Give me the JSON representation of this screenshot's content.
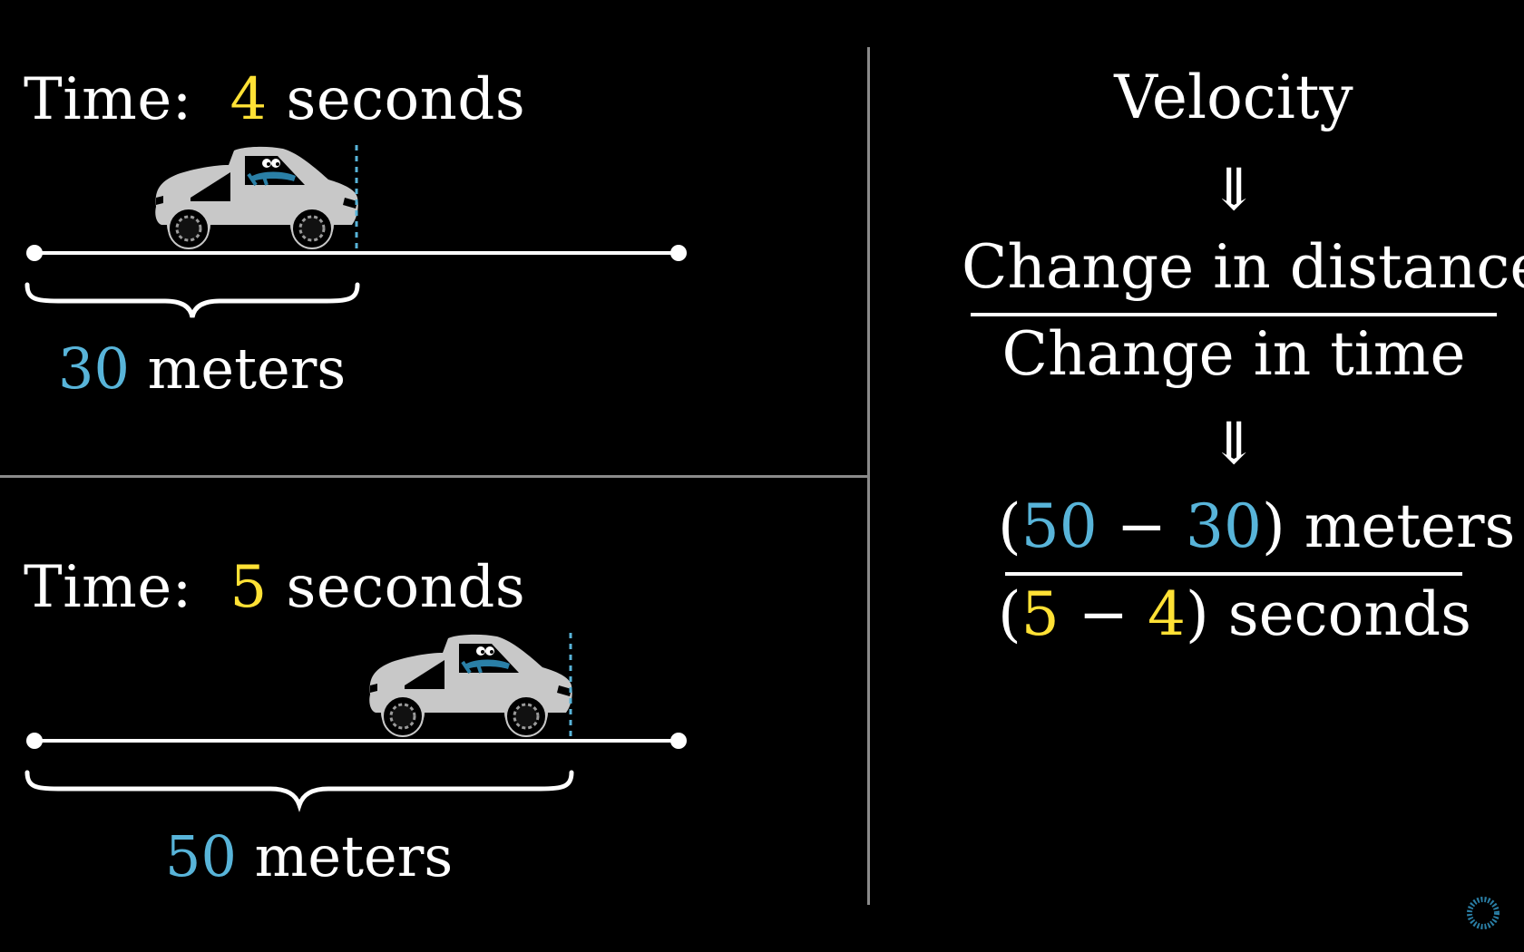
{
  "panel_top": {
    "time_prefix": "Time:",
    "time_value": "4",
    "time_unit": "seconds",
    "distance_value": "30",
    "distance_unit": "meters",
    "car_position_m": 30
  },
  "panel_bottom": {
    "time_prefix": "Time:",
    "time_value": "5",
    "time_unit": "seconds",
    "distance_value": "50",
    "distance_unit": "meters",
    "car_position_m": 50
  },
  "right": {
    "velocity_label": "Velocity",
    "implies_1": "⇓",
    "numerator_1": "Change in distance",
    "denominator_1": "Change in time",
    "implies_2": "⇓",
    "num_open": "(",
    "num_a": "50",
    "num_minus": " − ",
    "num_b": "30",
    "num_close": ")",
    "num_unit": "meters",
    "den_open": "(",
    "den_a": "5",
    "den_minus": " − ",
    "den_b": "4",
    "den_close": ")",
    "den_unit": "seconds"
  },
  "colors": {
    "background": "#000000",
    "time_highlight": "#ffe135",
    "distance_highlight": "#58b4d9",
    "divider": "#8a8a8a",
    "car_body": "#c8c8c8"
  }
}
